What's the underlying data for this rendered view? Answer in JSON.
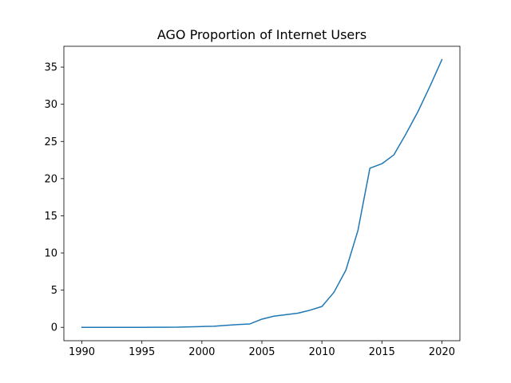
{
  "chart_data": {
    "type": "line",
    "title": "AGO Proportion of Internet Users",
    "xlabel": "",
    "ylabel": "",
    "xlim": [
      1988.5,
      2021.5
    ],
    "ylim": [
      -1.8,
      37.8
    ],
    "xticks": [
      1990,
      1995,
      2000,
      2005,
      2010,
      2015,
      2020
    ],
    "yticks": [
      0,
      5,
      10,
      15,
      20,
      25,
      30,
      35
    ],
    "grid": false,
    "line_color": "#1f77b4",
    "series": [
      {
        "x": [
          1990,
          1991,
          1992,
          1993,
          1994,
          1995,
          1996,
          1997,
          1998,
          1999,
          2000,
          2001,
          2002,
          2003,
          2004,
          2005,
          2006,
          2007,
          2008,
          2009,
          2010,
          2011,
          2012,
          2013,
          2014,
          2015,
          2016,
          2017,
          2018,
          2019,
          2020
        ],
        "y": [
          0,
          0,
          0,
          0,
          0,
          0,
          0.01,
          0.01,
          0.02,
          0.07,
          0.11,
          0.14,
          0.27,
          0.37,
          0.46,
          1.1,
          1.5,
          1.7,
          1.9,
          2.3,
          2.8,
          4.7,
          7.7,
          13.0,
          21.4,
          22.0,
          23.2,
          26.0,
          29.0,
          32.4,
          36.0
        ]
      }
    ]
  }
}
